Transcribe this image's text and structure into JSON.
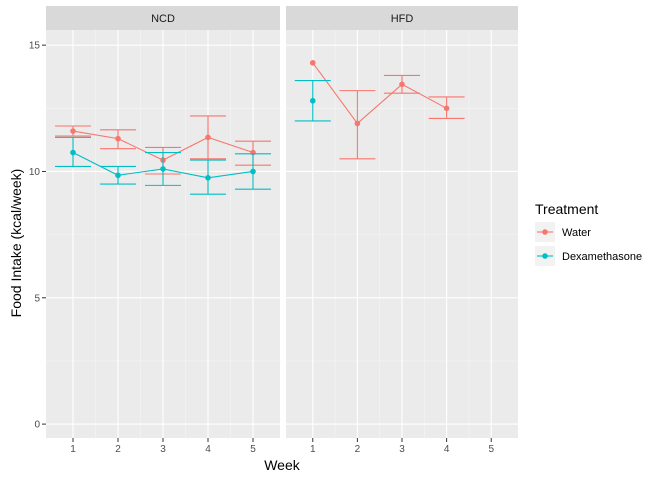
{
  "chart_data": {
    "type": "line",
    "facet_by": "diet",
    "panels": [
      "NCD",
      "HFD"
    ],
    "xlabel": "Week",
    "ylabel": "Food Intake (kcal/week)",
    "x_ticks": [
      1,
      2,
      3,
      4,
      5
    ],
    "y_ticks": [
      0,
      5,
      10,
      15
    ],
    "xlim": [
      0.4,
      5.6
    ],
    "ylim": [
      -0.55,
      15.6
    ],
    "grid": true,
    "legend": {
      "title": "Treatment",
      "placement": "right",
      "entries": [
        "Water",
        "Dexamethasone"
      ]
    },
    "series": [
      {
        "name": "Water",
        "color": "#F8766D",
        "panel_data": {
          "NCD": [
            {
              "x": 1,
              "y": 11.6,
              "lo": 11.4,
              "hi": 11.8
            },
            {
              "x": 2,
              "y": 11.3,
              "lo": 10.9,
              "hi": 11.65
            },
            {
              "x": 3,
              "y": 10.45,
              "lo": 9.9,
              "hi": 10.95
            },
            {
              "x": 4,
              "y": 11.35,
              "lo": 10.5,
              "hi": 12.2
            },
            {
              "x": 5,
              "y": 10.75,
              "lo": 10.25,
              "hi": 11.2
            }
          ],
          "HFD": [
            {
              "x": 1,
              "y": 14.3,
              "lo": null,
              "hi": null
            },
            {
              "x": 2,
              "y": 11.9,
              "lo": 10.5,
              "hi": 13.2
            },
            {
              "x": 3,
              "y": 13.45,
              "lo": 13.1,
              "hi": 13.8
            },
            {
              "x": 4,
              "y": 12.5,
              "lo": 12.1,
              "hi": 12.95
            }
          ]
        }
      },
      {
        "name": "Dexamethasone",
        "color": "#00BFC4",
        "panel_data": {
          "NCD": [
            {
              "x": 1,
              "y": 10.75,
              "lo": 10.2,
              "hi": 11.35
            },
            {
              "x": 2,
              "y": 9.85,
              "lo": 9.5,
              "hi": 10.2
            },
            {
              "x": 3,
              "y": 10.1,
              "lo": 9.45,
              "hi": 10.75
            },
            {
              "x": 4,
              "y": 9.75,
              "lo": 9.1,
              "hi": 10.45
            },
            {
              "x": 5,
              "y": 10.0,
              "lo": 9.3,
              "hi": 10.7
            }
          ],
          "HFD": [
            {
              "x": 1,
              "y": 12.8,
              "lo": 12.0,
              "hi": 13.6
            }
          ]
        }
      }
    ]
  }
}
